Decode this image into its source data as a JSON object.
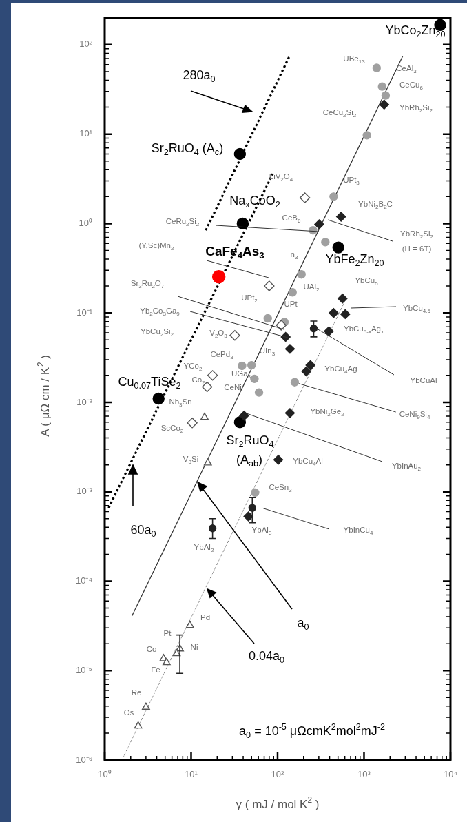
{
  "chart_data": {
    "type": "scatter",
    "log": "xy",
    "xlabel": "γ ( mJ / mol K$^{2}$ )",
    "ylabel": "A ( μΩ cm / K$^{2}$ )",
    "xlim": [
      1,
      10000
    ],
    "ylim": [
      1e-06,
      200
    ],
    "xticks": [
      {
        "value": 1,
        "label": "10⁰"
      },
      {
        "value": 2,
        "label": null
      },
      {
        "value": 3,
        "label": null
      },
      {
        "value": 4,
        "label": null
      },
      {
        "value": 5,
        "label": null
      },
      {
        "value": 6,
        "label": null
      },
      {
        "value": 7,
        "label": null
      },
      {
        "value": 8,
        "label": null
      },
      {
        "value": 9,
        "label": null
      },
      {
        "value": 10,
        "label": "10¹"
      },
      {
        "value": 20,
        "label": null
      },
      {
        "value": 30,
        "label": null
      },
      {
        "value": 40,
        "label": null
      },
      {
        "value": 50,
        "label": null
      },
      {
        "value": 60,
        "label": null
      },
      {
        "value": 70,
        "label": null
      },
      {
        "value": 80,
        "label": null
      },
      {
        "value": 90,
        "label": null
      },
      {
        "value": 100,
        "label": "10²"
      },
      {
        "value": 200,
        "label": null
      },
      {
        "value": 300,
        "label": null
      },
      {
        "value": 400,
        "label": null
      },
      {
        "value": 500,
        "label": null
      },
      {
        "value": 600,
        "label": null
      },
      {
        "value": 700,
        "label": null
      },
      {
        "value": 800,
        "label": null
      },
      {
        "value": 900,
        "label": null
      },
      {
        "value": 1000,
        "label": "10³"
      },
      {
        "value": 2000,
        "label": null
      },
      {
        "value": 3000,
        "label": null
      },
      {
        "value": 4000,
        "label": null
      },
      {
        "value": 5000,
        "label": null
      },
      {
        "value": 6000,
        "label": null
      },
      {
        "value": 7000,
        "label": null
      },
      {
        "value": 8000,
        "label": null
      },
      {
        "value": 9000,
        "label": null
      },
      {
        "value": 10000,
        "label": "10⁴"
      }
    ],
    "yticks": [
      {
        "value": 1e-06,
        "label": "10⁻⁶"
      },
      {
        "value": 2e-06,
        "label": null
      },
      {
        "value": 3e-06,
        "label": null
      },
      {
        "value": 4e-06,
        "label": null
      },
      {
        "value": 5e-06,
        "label": null
      },
      {
        "value": 6e-06,
        "label": null
      },
      {
        "value": 7e-06,
        "label": null
      },
      {
        "value": 8e-06,
        "label": null
      },
      {
        "value": 9e-06,
        "label": null
      },
      {
        "value": 1e-05,
        "label": "10⁻⁵"
      },
      {
        "value": 2e-05,
        "label": null
      },
      {
        "value": 3e-05,
        "label": null
      },
      {
        "value": 4e-05,
        "label": null
      },
      {
        "value": 5e-05,
        "label": null
      },
      {
        "value": 6e-05,
        "label": null
      },
      {
        "value": 7e-05,
        "label": null
      },
      {
        "value": 8e-05,
        "label": null
      },
      {
        "value": 9e-05,
        "label": null
      },
      {
        "value": 0.0001,
        "label": "10⁻⁴"
      },
      {
        "value": 0.0002,
        "label": null
      },
      {
        "value": 0.0003,
        "label": null
      },
      {
        "value": 0.0004,
        "label": null
      },
      {
        "value": 0.0005,
        "label": null
      },
      {
        "value": 0.0006,
        "label": null
      },
      {
        "value": 0.0007,
        "label": null
      },
      {
        "value": 0.0008,
        "label": null
      },
      {
        "value": 0.0009,
        "label": null
      },
      {
        "value": 0.001,
        "label": "10⁻³"
      },
      {
        "value": 0.002,
        "label": null
      },
      {
        "value": 0.003,
        "label": null
      },
      {
        "value": 0.004,
        "label": null
      },
      {
        "value": 0.005,
        "label": null
      },
      {
        "value": 0.006,
        "label": null
      },
      {
        "value": 0.007,
        "label": null
      },
      {
        "value": 0.008,
        "label": null
      },
      {
        "value": 0.009,
        "label": null
      },
      {
        "value": 0.01,
        "label": "10⁻²"
      },
      {
        "value": 0.02,
        "label": null
      },
      {
        "value": 0.03,
        "label": null
      },
      {
        "value": 0.04,
        "label": null
      },
      {
        "value": 0.05,
        "label": null
      },
      {
        "value": 0.06,
        "label": null
      },
      {
        "value": 0.07,
        "label": null
      },
      {
        "value": 0.08,
        "label": null
      },
      {
        "value": 0.09,
        "label": null
      },
      {
        "value": 0.1,
        "label": "10⁻¹"
      },
      {
        "value": 0.2,
        "label": null
      },
      {
        "value": 0.3,
        "label": null
      },
      {
        "value": 0.4,
        "label": null
      },
      {
        "value": 0.5,
        "label": null
      },
      {
        "value": 0.6,
        "label": null
      },
      {
        "value": 0.7,
        "label": null
      },
      {
        "value": 0.8,
        "label": null
      },
      {
        "value": 0.9,
        "label": null
      },
      {
        "value": 1,
        "label": "10⁰"
      },
      {
        "value": 2,
        "label": null
      },
      {
        "value": 3,
        "label": null
      },
      {
        "value": 4,
        "label": null
      },
      {
        "value": 5,
        "label": null
      },
      {
        "value": 6,
        "label": null
      },
      {
        "value": 7,
        "label": null
      },
      {
        "value": 8,
        "label": null
      },
      {
        "value": 9,
        "label": null
      },
      {
        "value": 10,
        "label": "10¹"
      },
      {
        "value": 20,
        "label": null
      },
      {
        "value": 30,
        "label": null
      },
      {
        "value": 40,
        "label": null
      },
      {
        "value": 50,
        "label": null
      },
      {
        "value": 60,
        "label": null
      },
      {
        "value": 70,
        "label": null
      },
      {
        "value": 80,
        "label": null
      },
      {
        "value": 90,
        "label": null
      },
      {
        "value": 100,
        "label": "10²"
      }
    ],
    "series": [
      {
        "color": "#000000",
        "marker": "circle",
        "x": [
          7600,
          36.7,
          39.5,
          505,
          4.2,
          36.7
        ],
        "values": [
          166,
          6.0,
          1.0,
          0.54,
          0.011,
          0.006
        ]
      },
      {
        "color": "#ff0000",
        "marker": "circle",
        "x": [
          20.9
        ],
        "values": [
          0.254
        ]
      },
      {
        "color": "#a0a0a0",
        "marker": "circle",
        "x": [
          1400,
          1620,
          1780,
          1080,
          445,
          257,
          357,
          149,
          189,
          77,
          120,
          38.8,
          50,
          54,
          61,
          158,
          55
        ],
        "values": [
          55,
          34,
          27,
          9.7,
          2.0,
          0.84,
          0.62,
          0.17,
          0.27,
          0.087,
          0.079,
          0.0256,
          0.026,
          0.0183,
          0.0129,
          0.0168,
          0.00098
        ]
      },
      {
        "color": "#222222",
        "marker": "diamond",
        "x": [
          1710,
          543,
          303,
          564,
          607,
          445,
          392,
          124,
          139,
          240,
          215,
          139,
          41,
          102,
          46
        ],
        "values": [
          21.4,
          1.19,
          0.98,
          0.145,
          0.097,
          0.1,
          0.0625,
          0.054,
          0.0396,
          0.026,
          0.0222,
          0.0076,
          0.0071,
          0.00228,
          0.00053
        ]
      },
      {
        "color": "#222222",
        "marker": "circle",
        "x": [
          262,
          51,
          17.7
        ],
        "values": [
          0.067,
          0.00066,
          0.00039
        ],
        "errors": [
          [
            0.054,
            0.081
          ],
          [
            0.00045,
            0.00086
          ],
          [
            0.0003,
            0.0005
          ]
        ]
      },
      {
        "color": "#ffffff",
        "marker": "diamond",
        "x": [
          207,
          80,
          110,
          32,
          17.7,
          15.3,
          10.3
        ],
        "values": [
          1.94,
          0.2,
          0.073,
          0.056,
          0.02,
          0.0149,
          0.0059
        ]
      },
      {
        "color": "#ffffff",
        "marker": "triangle",
        "x": [
          14.3,
          15.6,
          9.7,
          7.4,
          6.8,
          4.8,
          5.2,
          3.0,
          2.44
        ],
        "values": [
          0.0068,
          0.0021,
          3.2e-05,
          1.75e-05,
          1.55e-05,
          1.36e-05,
          1.23e-05,
          3.9e-06,
          2.4e-06
        ],
        "errors": [
          null,
          null,
          null,
          [
            9.3e-06,
            2.5e-05
          ],
          null,
          null,
          null,
          null,
          null
        ]
      },
      {
        "type": "line",
        "color": "#333333",
        "line_style": "solid",
        "x": [
          2.07,
          2800
        ],
        "values": [
          4.1e-05,
          74
        ]
      },
      {
        "type": "line",
        "color": "#666666",
        "line_style": "dotted",
        "x": [
          1.66,
          620
        ],
        "values": [
          1.1e-06,
          0.144
        ]
      },
      {
        "type": "line",
        "color": "#000000",
        "line_style": "dotted",
        "x": [
          14.8,
          136
        ],
        "values": [
          0.84,
          73
        ]
      },
      {
        "type": "line",
        "color": "#000000",
        "line_style": "dotted",
        "x": [
          1.11,
          88
        ],
        "values": [
          0.00066,
          3.6
        ]
      }
    ],
    "annotations": [
      "YbCo$_{2}$Zn$_{20}$",
      "280a$_{0}$",
      "Sr$_{2}$RuO$_{4}$ (A$_{c}$)",
      "Na$_{x}$CoO$_{2}$",
      "CaFe$_{4}$As$_{3}$",
      "YbFe$_{2}$Zn$_{20}$",
      "Cu$_{0.07}$TiSe$_{2}$",
      "Sr$_{2}$RuO$_{4}$",
      "(A$_{ab}$)",
      "60a$_{0}$",
      "a$_{0}$",
      "0.04a$_{0}$",
      "a$_{0}$ = 10$^{-5}$ μΩcmK$^{2}$mol$^{2}$mJ$^{-2}$",
      "UBe$_{13}$",
      "CeAl$_{3}$",
      "CeCu$_{6}$",
      "YbRh$_{2}$Si$_{2}$",
      "CeCu$_{2}$Si$_{2}$",
      "LiV$_{2}$O$_{4}$",
      "UPt$_{3}$",
      "YbNi$_{2}$B$_{2}$C",
      "CeB$_{6}$",
      "CeRu$_{2}$Si$_{2}$",
      "YbRh$_{2}$Si$_{2}$",
      "(H = 6T)",
      "(Y,Sc)Mn$_{2}$",
      "n$_{3}$",
      "Sr$_{3}$Ru$_{2}$O$_{7}$",
      "UAl$_{2}$",
      "YbCu$_{5}$",
      "UPt$_{2}$",
      "UPt",
      "YbCu$_{4.5}$",
      "Yb$_{2}$Co$_{3}$Ga$_{9}$",
      "YbCu$_{2}$Si$_{2}$",
      "V$_{2}$O$_{3}$",
      "YbCu$_{5-x}$Ag$_{x}$",
      "UIn$_{3}$",
      "CePd$_{3}$",
      "YCo$_{2}$",
      "Co$_{2}$",
      "UGa$_{3}$",
      "CeNi",
      "YbCu$_{4}$Ag",
      "YbCuAl",
      "Nb$_{3}$Sn",
      "YbNi$_{2}$Ge$_{2}$",
      {
        "text": "CeNi$_{9}$Si$_{4}$",
        "x": 158,
        "y": 0.0168
      },
      "ScCo$_{2}$",
      "V$_{3}$Si",
      "YbCu$_{4}$Al",
      "YbInAu$_{2}$",
      "CeSn$_{3}$",
      "YbAl$_{3}$",
      "YbInCu$_{4}$",
      "YbAl$_{2}$",
      "Pd",
      "Pt",
      "Ni",
      "Co",
      "Fe",
      "Re",
      "Os"
    ]
  }
}
